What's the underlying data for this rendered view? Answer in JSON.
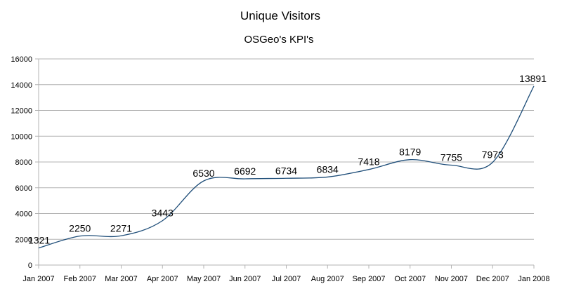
{
  "chart_data": {
    "type": "line",
    "title": "Unique Visitors",
    "subtitle": "OSGeo's KPI's",
    "xlabel": "",
    "ylabel": "",
    "categories": [
      "Jan 2007",
      "Feb 2007",
      "Mar 2007",
      "Apr 2007",
      "May 2007",
      "Jun 2007",
      "Jul 2007",
      "Aug 2007",
      "Sep 2007",
      "Oct 2007",
      "Nov 2007",
      "Dec 2007",
      "Jan 2008"
    ],
    "series": [
      {
        "values": [
          1321,
          2250,
          2271,
          3443,
          6530,
          6692,
          6734,
          6834,
          7418,
          8179,
          7755,
          7973,
          13891
        ],
        "color": "#1f4e79"
      }
    ],
    "ylim": [
      0,
      16000
    ],
    "yticks": [
      0,
      2000,
      4000,
      6000,
      8000,
      10000,
      12000,
      14000,
      16000
    ],
    "grid": true,
    "smooth": true,
    "data_labels": true,
    "legend": "none",
    "colors": {
      "grid": "#b3b3b3",
      "axis": "#b3b3b3",
      "line": "#1f4e79"
    }
  }
}
